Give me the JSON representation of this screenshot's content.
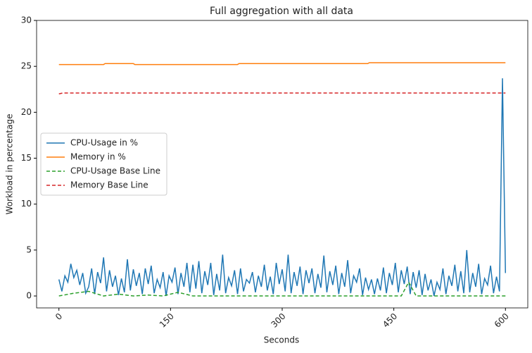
{
  "chart_data": {
    "type": "line",
    "title": "Full aggregation with all data",
    "xlabel": "Seconds",
    "ylabel": "Workload in percentage",
    "x": [
      0,
      4,
      8,
      12,
      16,
      20,
      24,
      28,
      32,
      36,
      40,
      44,
      48,
      52,
      56,
      60,
      64,
      68,
      72,
      76,
      80,
      84,
      88,
      92,
      96,
      100,
      104,
      108,
      112,
      116,
      120,
      124,
      128,
      132,
      136,
      140,
      144,
      148,
      152,
      156,
      160,
      164,
      168,
      172,
      176,
      180,
      184,
      188,
      192,
      196,
      200,
      204,
      208,
      212,
      216,
      220,
      224,
      228,
      232,
      236,
      240,
      244,
      248,
      252,
      256,
      260,
      264,
      268,
      272,
      276,
      280,
      284,
      288,
      292,
      296,
      300,
      304,
      308,
      312,
      316,
      320,
      324,
      328,
      332,
      336,
      340,
      344,
      348,
      352,
      356,
      360,
      364,
      368,
      372,
      376,
      380,
      384,
      388,
      392,
      396,
      400,
      404,
      408,
      412,
      416,
      420,
      424,
      428,
      432,
      436,
      440,
      444,
      448,
      452,
      456,
      460,
      464,
      468,
      472,
      476,
      480,
      484,
      488,
      492,
      496,
      500,
      504,
      508,
      512,
      516,
      520,
      524,
      528,
      532,
      536,
      540,
      544,
      548,
      552,
      556,
      560,
      564,
      568,
      572,
      576,
      580,
      584,
      588,
      592,
      596,
      600
    ],
    "series": [
      {
        "name": "CPU-Usage in %",
        "color": "#1f77b4",
        "dash": false,
        "values": [
          1.8,
          0.5,
          2.2,
          1.5,
          3.5,
          2.0,
          2.8,
          1.2,
          2.5,
          0.3,
          1.0,
          3.0,
          0.2,
          2.6,
          1.4,
          4.2,
          0.5,
          2.8,
          1.0,
          2.2,
          0.1,
          1.9,
          0.4,
          4.0,
          0.6,
          2.9,
          1.1,
          2.5,
          0.2,
          3.0,
          1.3,
          3.3,
          0.3,
          1.8,
          0.9,
          2.6,
          0.0,
          2.2,
          1.5,
          3.1,
          0.2,
          2.5,
          1.0,
          3.6,
          0.4,
          3.4,
          0.8,
          3.8,
          0.3,
          2.7,
          1.2,
          3.6,
          0.1,
          2.4,
          0.6,
          4.5,
          0.3,
          2.0,
          1.1,
          2.8,
          0.2,
          3.0,
          0.5,
          1.8,
          1.4,
          2.6,
          0.4,
          2.2,
          1.0,
          3.4,
          0.6,
          2.1,
          0.2,
          3.6,
          1.3,
          2.9,
          0.5,
          4.5,
          0.3,
          2.6,
          1.1,
          3.2,
          0.2,
          2.8,
          1.4,
          3.0,
          0.3,
          2.4,
          0.9,
          4.4,
          0.4,
          2.7,
          1.2,
          3.3,
          0.2,
          2.5,
          1.0,
          3.9,
          0.3,
          2.2,
          1.5,
          3.0,
          0.1,
          2.0,
          0.7,
          1.8,
          0.2,
          1.9,
          0.6,
          3.1,
          0.3,
          2.5,
          1.2,
          3.6,
          0.4,
          2.8,
          1.3,
          3.2,
          0.2,
          2.6,
          0.9,
          2.8,
          0.1,
          2.4,
          0.6,
          1.8,
          0.0,
          1.5,
          0.7,
          3.0,
          0.2,
          2.2,
          1.1,
          3.4,
          0.5,
          2.7,
          0.3,
          5.0,
          0.4,
          2.5,
          1.0,
          3.5,
          0.2,
          1.9,
          1.2,
          3.3,
          0.3,
          2.1,
          0.5,
          23.7,
          2.5
        ]
      },
      {
        "name": "Memory in %",
        "color": "#ff7f0e",
        "dash": false,
        "x": [
          0,
          60,
          62,
          100,
          102,
          240,
          242,
          415,
          417,
          600
        ],
        "values": [
          25.2,
          25.2,
          25.3,
          25.3,
          25.2,
          25.2,
          25.3,
          25.3,
          25.4,
          25.4
        ]
      },
      {
        "name": "CPU-Usage Base Line",
        "color": "#2ca02c",
        "dash": true,
        "x": [
          0,
          20,
          40,
          60,
          80,
          100,
          120,
          140,
          160,
          180,
          200,
          220,
          240,
          260,
          280,
          300,
          320,
          340,
          360,
          380,
          400,
          420,
          440,
          460,
          470,
          480,
          500,
          520,
          540,
          560,
          580,
          600
        ],
        "values": [
          0,
          0.3,
          0.5,
          0,
          0.2,
          0,
          0.1,
          0,
          0.4,
          0,
          0,
          0,
          0,
          0,
          0,
          0,
          0,
          0,
          0,
          0,
          0,
          0,
          0,
          0,
          1.5,
          0,
          0,
          0,
          0,
          0,
          0,
          0
        ]
      },
      {
        "name": "Memory Base Line",
        "color": "#d62728",
        "dash": true,
        "x": [
          0,
          5,
          600
        ],
        "values": [
          22.0,
          22.1,
          22.1
        ]
      }
    ],
    "xlim": [
      -30,
      630
    ],
    "xticks": [
      0,
      150,
      300,
      450,
      600
    ],
    "ylim": [
      -1.3,
      30
    ],
    "yticks": [
      0,
      5,
      10,
      15,
      20,
      25,
      30
    ],
    "legend": "center left"
  }
}
